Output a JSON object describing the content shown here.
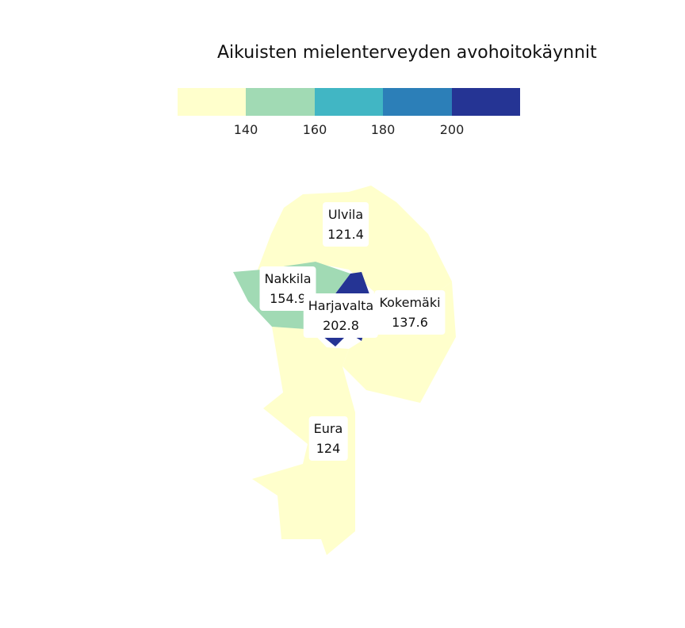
{
  "title": "Aikuisten mielenterveyden avohoitokäynnit",
  "legend": {
    "colors": [
      "#ffffcc",
      "#a1dab4",
      "#41b6c4",
      "#2c7fb8",
      "#253494"
    ],
    "ticks": [
      "140",
      "160",
      "180",
      "200"
    ]
  },
  "regions": [
    {
      "name": "Ulvila",
      "value": "121.4",
      "fill": "#ffffcc"
    },
    {
      "name": "Kokemäki",
      "value": "137.6",
      "fill": "#ffffcc"
    },
    {
      "name": "Eura",
      "value": "124",
      "fill": "#ffffcc"
    },
    {
      "name": "Nakkila",
      "value": "154.9",
      "fill": "#a1dab4"
    },
    {
      "name": "Harjavalta",
      "value": "202.8",
      "fill": "#253494"
    }
  ]
}
